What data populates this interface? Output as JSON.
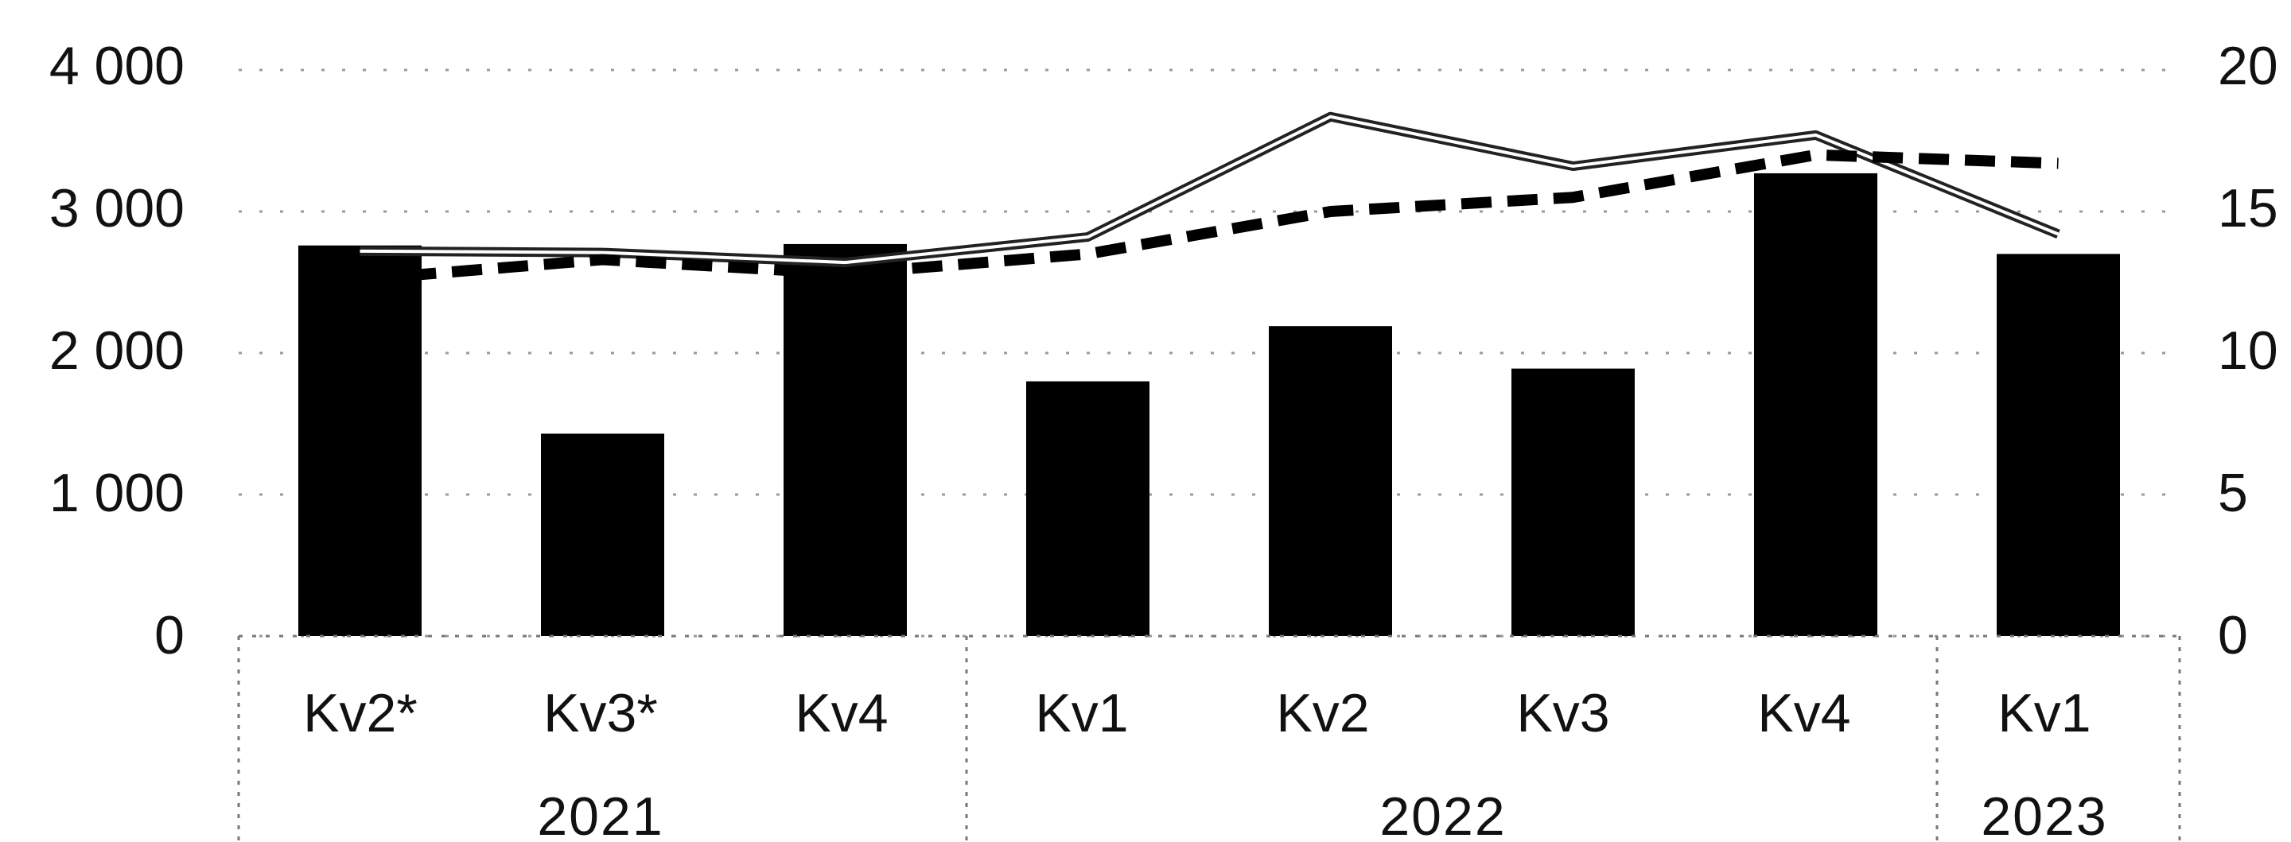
{
  "chart_data": {
    "type": "bar",
    "categories": [
      "Kv2*",
      "Kv3*",
      "Kv4",
      "Kv1",
      "Kv2",
      "Kv3",
      "Kv4",
      "Kv1"
    ],
    "groups": [
      {
        "label": "2021",
        "span": 3
      },
      {
        "label": "2022",
        "span": 4
      },
      {
        "label": "2023",
        "span": 1
      }
    ],
    "series": [
      {
        "type": "bar",
        "axis": "left",
        "color": "#000000",
        "values": [
          2760,
          1430,
          2770,
          1800,
          2190,
          1890,
          3270,
          2700
        ]
      },
      {
        "type": "line",
        "style": "double",
        "axis": "left",
        "color": "#222222",
        "values": [
          2720,
          2710,
          2640,
          2820,
          3670,
          3320,
          3540,
          2840
        ]
      },
      {
        "type": "line",
        "style": "dashed",
        "axis": "right",
        "color": "#000000",
        "values": [
          12.6,
          13.3,
          12.8,
          13.5,
          15.0,
          15.5,
          17.0,
          16.7
        ]
      }
    ],
    "ylim": [
      0,
      4000
    ],
    "y2lim": [
      0,
      20
    ],
    "yticks": [
      "0",
      "1 000",
      "2 000",
      "3 000",
      "4 000"
    ],
    "y2ticks": [
      "0",
      "5",
      "10",
      "15",
      "20"
    ],
    "grid": true
  }
}
